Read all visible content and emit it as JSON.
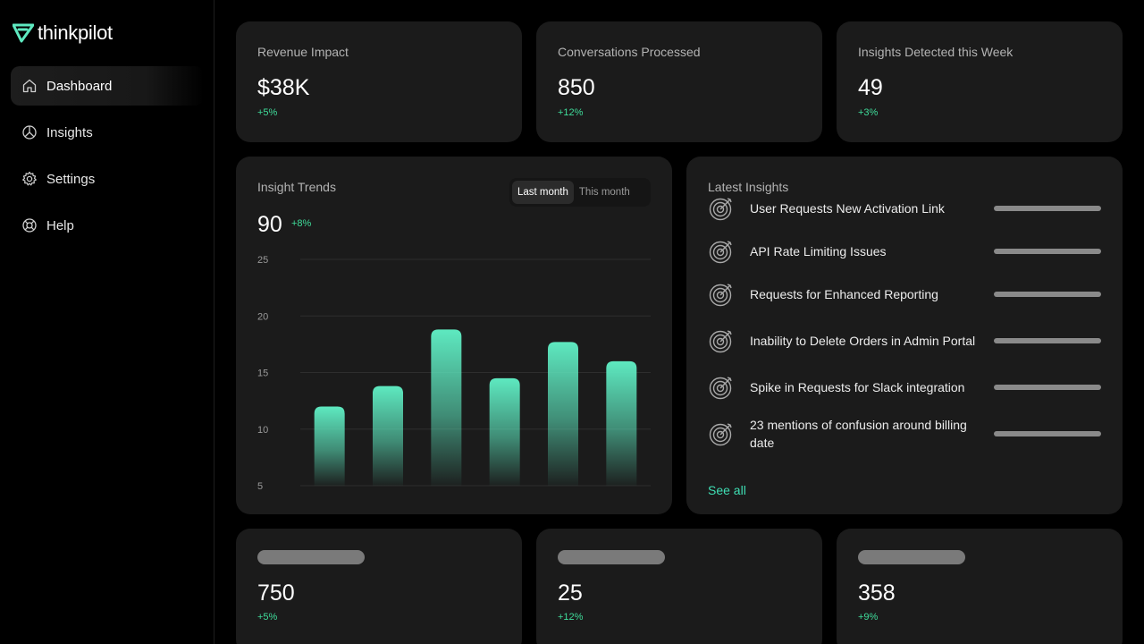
{
  "brand": {
    "name": "thinkpilot",
    "accent": "#5ee9c0"
  },
  "sidebar": {
    "items": [
      {
        "label": "Dashboard",
        "icon": "home-icon",
        "active": true
      },
      {
        "label": "Insights",
        "icon": "pie-chart-icon",
        "active": false
      },
      {
        "label": "Settings",
        "icon": "gear-icon",
        "active": false
      },
      {
        "label": "Help",
        "icon": "lifebuoy-icon",
        "active": false
      }
    ]
  },
  "stats": [
    {
      "label": "Revenue Impact",
      "value": "$38K",
      "delta": "+5%"
    },
    {
      "label": "Conversations Processed",
      "value": "850",
      "delta": "+12%"
    },
    {
      "label": "Insights Detected this Week",
      "value": "49",
      "delta": "+3%"
    }
  ],
  "trends": {
    "title": "Insight Trends",
    "value": "90",
    "delta": "+8%",
    "toggle": {
      "options": [
        "Last month",
        "This month"
      ],
      "selected": "Last month"
    }
  },
  "chart_data": {
    "type": "bar",
    "categories": [
      "",
      "",
      "",
      "",
      "",
      ""
    ],
    "values": [
      12,
      13.8,
      18.8,
      14.5,
      17.7,
      16
    ],
    "ylim": [
      5,
      25
    ],
    "yticks": [
      25,
      20,
      15,
      10,
      5
    ],
    "grid": true,
    "bar_color": "#5ee9c0"
  },
  "latest": {
    "title": "Latest Insights",
    "items": [
      {
        "text": "User Requests New Activation Link",
        "icon": "target-icon"
      },
      {
        "text": "API Rate Limiting Issues",
        "icon": "target-icon"
      },
      {
        "text": "Requests for Enhanced Reporting",
        "icon": "target-icon"
      },
      {
        "text": "Inability to Delete Orders in Admin Portal",
        "icon": "target-icon"
      },
      {
        "text": "Spike in Requests for Slack integration",
        "icon": "target-icon"
      },
      {
        "text": "23 mentions of confusion around billing date",
        "icon": "target-icon"
      }
    ],
    "see_all": "See all"
  },
  "bottom_stats": [
    {
      "value": "750",
      "delta": "+5%"
    },
    {
      "value": "25",
      "delta": "+12%"
    },
    {
      "value": "358",
      "delta": "+9%"
    }
  ]
}
